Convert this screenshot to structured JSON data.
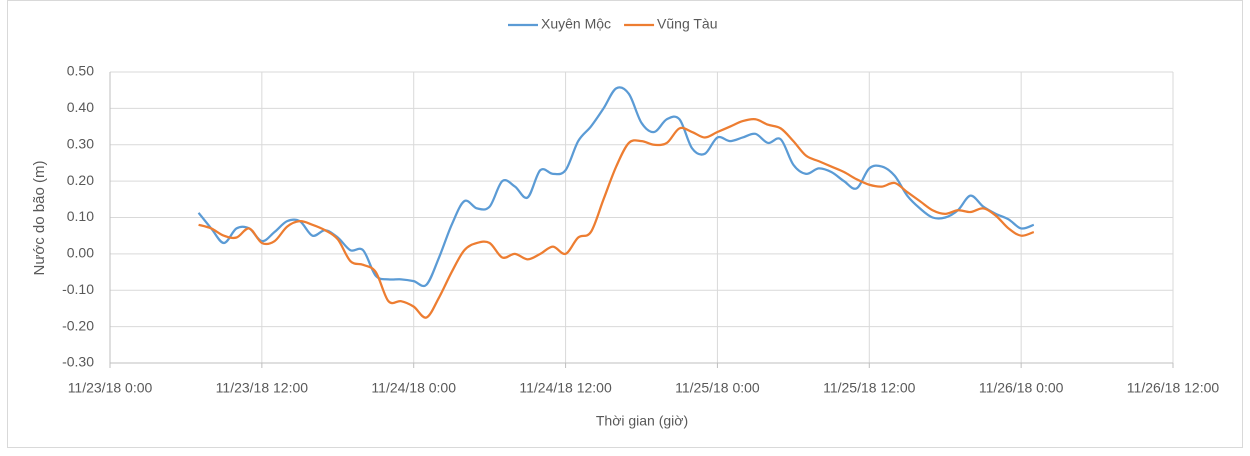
{
  "chart_data": {
    "type": "line",
    "x_label": "Thời gian (giờ)",
    "y_label": "Nước do bão (m)",
    "x": [
      7,
      8,
      9,
      10,
      11,
      12,
      13,
      14,
      15,
      16,
      17,
      18,
      19,
      20,
      21,
      22,
      23,
      24,
      25,
      26,
      27,
      28,
      29,
      30,
      31,
      32,
      33,
      34,
      35,
      36,
      37,
      38,
      39,
      40,
      41,
      42,
      43,
      44,
      45,
      46,
      47,
      48,
      49,
      50,
      51,
      52,
      53,
      54,
      55,
      56,
      57,
      58,
      59,
      60,
      61,
      62,
      63,
      64,
      65,
      66,
      67,
      68,
      69,
      70,
      71,
      72,
      73
    ],
    "series": [
      {
        "name": "Xuyên Mộc",
        "color": "#5b9bd5",
        "values": [
          0.113,
          0.07,
          0.03,
          0.07,
          0.07,
          0.035,
          0.06,
          0.09,
          0.09,
          0.05,
          0.065,
          0.045,
          0.01,
          0.01,
          -0.06,
          -0.07,
          -0.07,
          -0.075,
          -0.085,
          -0.01,
          0.08,
          0.145,
          0.125,
          0.13,
          0.2,
          0.185,
          0.155,
          0.23,
          0.22,
          0.23,
          0.31,
          0.35,
          0.4,
          0.455,
          0.44,
          0.36,
          0.335,
          0.37,
          0.37,
          0.29,
          0.275,
          0.32,
          0.31,
          0.32,
          0.33,
          0.305,
          0.315,
          0.245,
          0.22,
          0.235,
          0.225,
          0.2,
          0.18,
          0.235,
          0.24,
          0.215,
          0.16,
          0.125,
          0.1,
          0.1,
          0.12,
          0.16,
          0.13,
          0.11,
          0.095,
          0.07,
          0.08
        ]
      },
      {
        "name": "Vũng Tàu",
        "color": "#ed7d31",
        "values": [
          0.08,
          0.07,
          0.05,
          0.045,
          0.07,
          0.03,
          0.035,
          0.075,
          0.09,
          0.08,
          0.065,
          0.04,
          -0.02,
          -0.03,
          -0.05,
          -0.13,
          -0.13,
          -0.145,
          -0.175,
          -0.12,
          -0.05,
          0.01,
          0.03,
          0.03,
          -0.01,
          0.0,
          -0.015,
          0.0,
          0.02,
          0.0,
          0.045,
          0.06,
          0.15,
          0.24,
          0.305,
          0.31,
          0.3,
          0.305,
          0.345,
          0.335,
          0.32,
          0.335,
          0.35,
          0.365,
          0.37,
          0.355,
          0.345,
          0.31,
          0.27,
          0.255,
          0.24,
          0.225,
          0.205,
          0.19,
          0.185,
          0.195,
          0.17,
          0.145,
          0.12,
          0.11,
          0.12,
          0.115,
          0.125,
          0.105,
          0.07,
          0.05,
          0.06
        ]
      }
    ],
    "xlim": [
      0,
      84
    ],
    "xticks": [
      {
        "value": 0,
        "label": "11/23/18 0:00"
      },
      {
        "value": 12,
        "label": "11/23/18 12:00"
      },
      {
        "value": 24,
        "label": "11/24/18 0:00"
      },
      {
        "value": 36,
        "label": "11/24/18 12:00"
      },
      {
        "value": 48,
        "label": "11/25/18 0:00"
      },
      {
        "value": 60,
        "label": "11/25/18 12:00"
      },
      {
        "value": 72,
        "label": "11/26/18 0:00"
      },
      {
        "value": 84,
        "label": "11/26/18 12:00"
      }
    ],
    "ylim": [
      -0.3,
      0.5
    ],
    "yticks": [
      {
        "value": -0.3,
        "label": "-0.30"
      },
      {
        "value": -0.2,
        "label": "-0.20"
      },
      {
        "value": -0.1,
        "label": "-0.10"
      },
      {
        "value": 0,
        "label": "0.00"
      },
      {
        "value": 0.1,
        "label": "0.10"
      },
      {
        "value": 0.2,
        "label": "0.20"
      },
      {
        "value": 0.3,
        "label": "0.30"
      },
      {
        "value": 0.4,
        "label": "0.40"
      },
      {
        "value": 0.5,
        "label": "0.50"
      }
    ],
    "grid": true,
    "legend": "top"
  }
}
